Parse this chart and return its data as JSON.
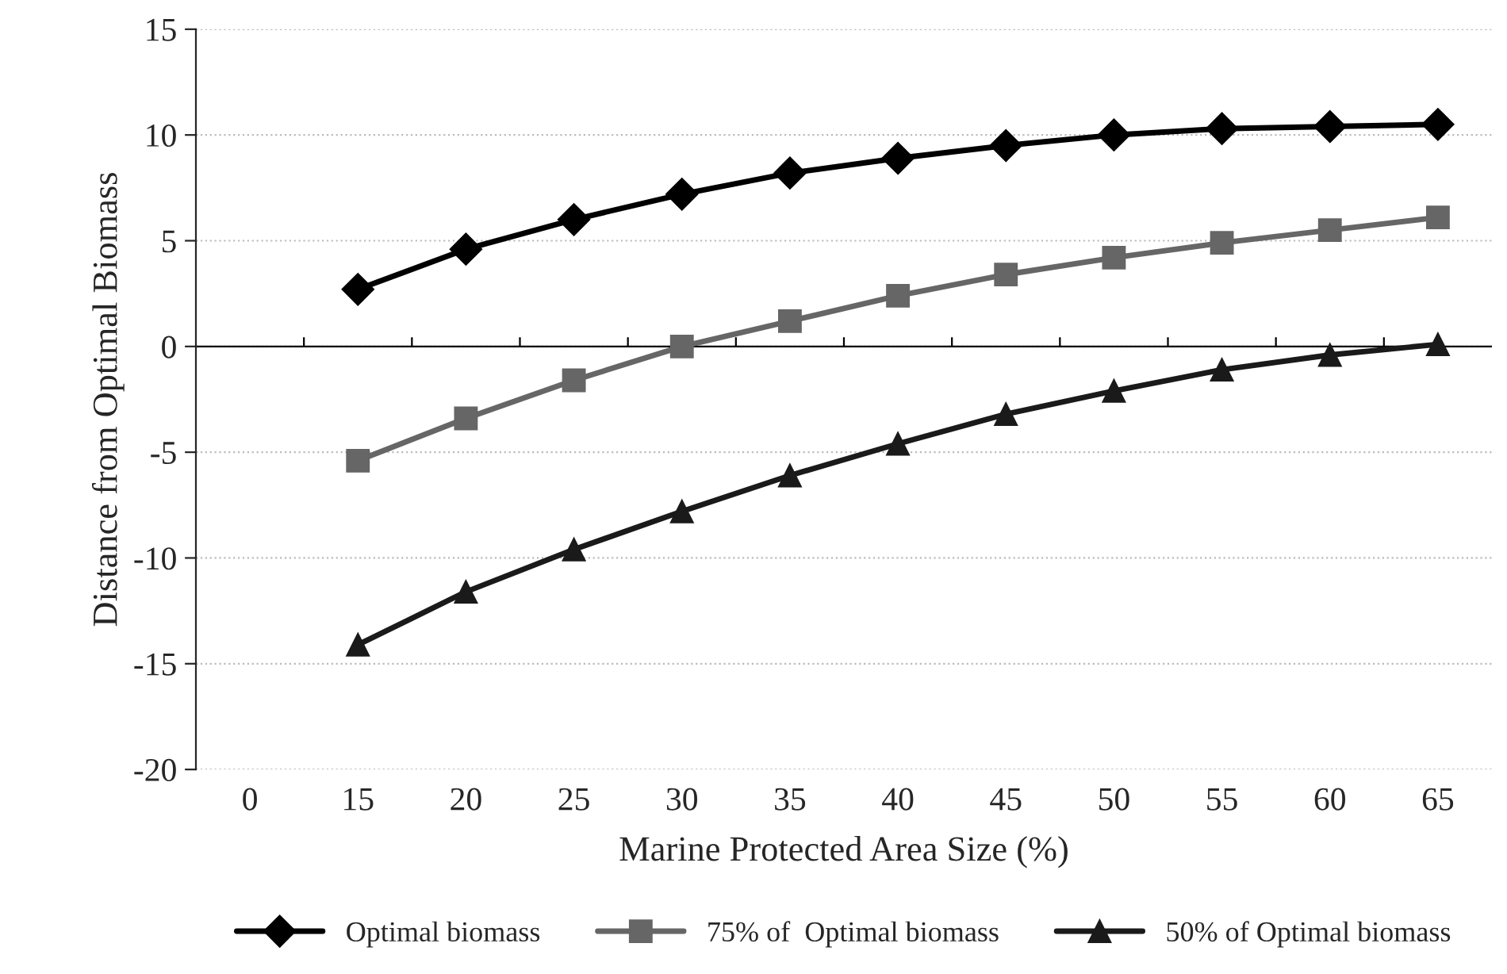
{
  "chart_data": {
    "type": "line",
    "xlabel": "Marine Protected Area Size (%)",
    "ylabel": "Distance from Optimal Biomass",
    "categories": [
      "0",
      "15",
      "20",
      "25",
      "30",
      "35",
      "40",
      "45",
      "50",
      "55",
      "60",
      "65"
    ],
    "series": [
      {
        "name": "Optimal biomass",
        "color": "#000000",
        "marker": "diamond",
        "values": [
          null,
          2.7,
          4.6,
          6.0,
          7.2,
          8.2,
          8.9,
          9.5,
          10.0,
          10.3,
          10.4,
          10.5
        ]
      },
      {
        "name": "75% of  Optimal biomass",
        "color": "#666666",
        "marker": "square",
        "values": [
          null,
          -5.4,
          -3.4,
          -1.6,
          0.0,
          1.2,
          2.4,
          3.4,
          4.2,
          4.9,
          5.5,
          6.1
        ]
      },
      {
        "name": "50% of Optimal biomass",
        "color": "#1a1a1a",
        "marker": "triangle",
        "values": [
          null,
          -14.1,
          -11.6,
          -9.6,
          -7.8,
          -6.1,
          -4.6,
          -3.2,
          -2.1,
          -1.1,
          -0.4,
          0.1
        ]
      }
    ],
    "ylim": [
      -20,
      15
    ],
    "yticks": [
      -20,
      -15,
      -10,
      -5,
      0,
      5,
      10,
      15
    ],
    "grid": "y",
    "legend": "bottom",
    "line_style": "solid"
  }
}
